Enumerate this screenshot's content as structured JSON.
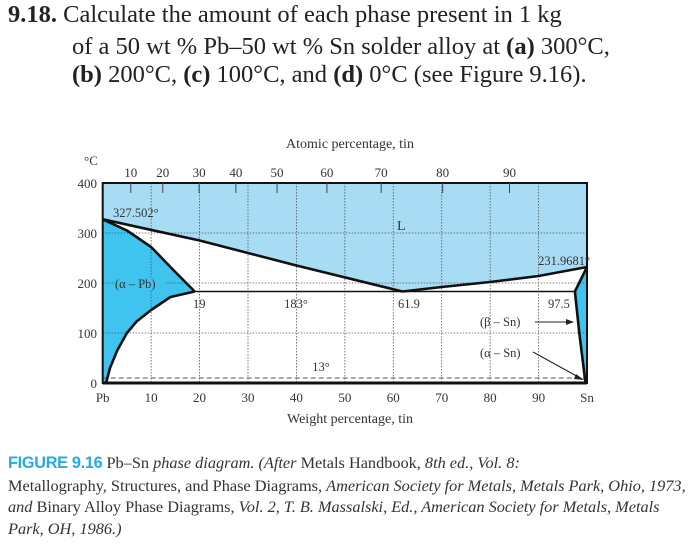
{
  "problem": {
    "number": "9.18.",
    "line1": "Calculate the amount of each phase present in 1 kg",
    "line2": "of a 50 wt % Pb–50 wt % Sn solder alloy at",
    "part_a": "(a)",
    "line2_end": "300°C,",
    "part_b": "(b)",
    "line3_b": "200°C,",
    "part_c": "(c)",
    "line3_c": "100°C, and",
    "part_d": "(d)",
    "line3_d": "0°C (see Figure 9.16)."
  },
  "chart_data": {
    "type": "phase-diagram",
    "top_axis_label": "Atomic percentage, tin",
    "bottom_axis_label": "Weight percentage, tin",
    "y_unit_label": "°C",
    "ylim": [
      0,
      400
    ],
    "xlim": [
      0,
      100
    ],
    "y_ticks": [
      400,
      300,
      200,
      100,
      0
    ],
    "x_ticks": [
      "Pb",
      "10",
      "20",
      "30",
      "40",
      "50",
      "60",
      "70",
      "80",
      "90",
      "Sn"
    ],
    "atomic_ticks": [
      {
        "label": "10",
        "wt": 5.8
      },
      {
        "label": "20",
        "wt": 12.4
      },
      {
        "label": "30",
        "wt": 19.9
      },
      {
        "label": "40",
        "wt": 27.5
      },
      {
        "label": "50",
        "wt": 36.0
      },
      {
        "label": "60",
        "wt": 46.3
      },
      {
        "label": "70",
        "wt": 57.5
      },
      {
        "label": "80",
        "wt": 70.2
      },
      {
        "label": "90",
        "wt": 84.0
      }
    ],
    "grid": true,
    "points": {
      "pb_melting": [
        0,
        327.502
      ],
      "sn_melting": [
        100,
        231.9681
      ],
      "eutectic": [
        61.9,
        183
      ],
      "alpha_max": [
        19,
        183
      ],
      "beta_max": [
        97.5,
        183
      ]
    },
    "curves": {
      "liquidus_pb": [
        [
          0,
          327.5
        ],
        [
          20,
          285
        ],
        [
          40,
          235
        ],
        [
          61.9,
          183
        ]
      ],
      "liquidus_sn": [
        [
          61.9,
          183
        ],
        [
          70,
          192
        ],
        [
          80,
          202
        ],
        [
          90,
          214
        ],
        [
          100,
          231.97
        ]
      ],
      "alpha_solidus": [
        [
          0,
          327.5
        ],
        [
          5,
          305
        ],
        [
          10,
          272
        ],
        [
          15,
          222
        ],
        [
          19,
          183
        ]
      ],
      "alpha_solvus": [
        [
          19,
          183
        ],
        [
          14,
          172
        ],
        [
          10,
          146
        ],
        [
          7,
          123
        ],
        [
          5,
          100
        ],
        [
          3,
          65
        ],
        [
          1.5,
          30
        ],
        [
          0.7,
          0
        ]
      ],
      "beta_solidus": [
        [
          100,
          231.97
        ],
        [
          97.5,
          183
        ]
      ],
      "beta_solvus": [
        [
          97.5,
          183
        ],
        [
          98.4,
          100
        ],
        [
          99.7,
          0
        ]
      ]
    },
    "colors": {
      "liquid": "#a7dcf4",
      "solid": "#3fc3ef",
      "line": "#111111"
    },
    "annotations": {
      "pb_temp": "327.502°",
      "liquid": "L",
      "sn_temp": "231.9681°",
      "alpha_pb": "(α – Pb)",
      "alpha_comp": "19",
      "eutectic_temp": "183°",
      "eutectic_comp": "61.9",
      "beta_comp": "97.5",
      "beta_sn": "(β – Sn)",
      "alpha_sn": "(α – Sn)",
      "transform_temp": "13°"
    }
  },
  "caption": {
    "figure_number": "FIGURE 9.16",
    "t1": "Pb–Sn",
    "t2": "phase diagram. (After",
    "t3": "Metals Handbook,",
    "t4": "8th ed., Vol. 8:",
    "t5": "Metallography, Structures, and Phase Diagrams,",
    "t6": "American Society for Metals, Metals Park, Ohio, 1973, and",
    "t7": "Binary Alloy Phase Diagrams,",
    "t8": "Vol. 2, T. B. Massalski, Ed., American Society for Metals, Metals Park, OH, 1986.)"
  }
}
